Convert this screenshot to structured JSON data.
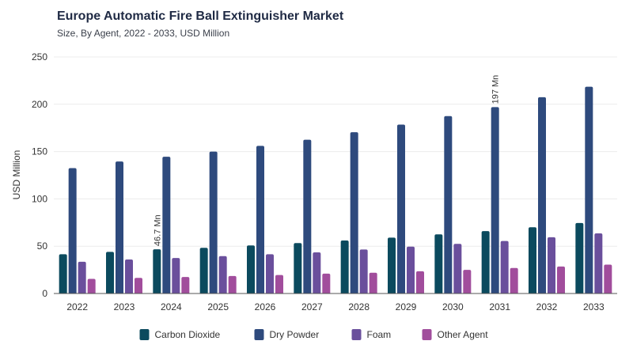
{
  "chart_data": {
    "type": "bar",
    "title": "Europe Automatic Fire Ball Extinguisher Market",
    "subtitle": "Size, By Agent, 2022 - 2033, USD Million",
    "xlabel": "",
    "ylabel": "USD Million",
    "ylim": [
      0,
      250
    ],
    "yticks": [
      0,
      50,
      100,
      150,
      200,
      250
    ],
    "grid": true,
    "legend_position": "bottom-center",
    "categories": [
      "2022",
      "2023",
      "2024",
      "2025",
      "2026",
      "2027",
      "2028",
      "2029",
      "2030",
      "2031",
      "2032",
      "2033"
    ],
    "series": [
      {
        "name": "Carbon Dioxide",
        "color": "#0b4a5e",
        "values": [
          41.5,
          44.0,
          46.7,
          48.3,
          50.8,
          53.3,
          56.0,
          59.0,
          62.5,
          66.0,
          70.0,
          74.5
        ]
      },
      {
        "name": "Dry Powder",
        "color": "#2e4a7d",
        "values": [
          132.5,
          139.5,
          144.5,
          150.0,
          156.0,
          162.5,
          170.5,
          178.5,
          187.5,
          197.0,
          207.5,
          218.5
        ]
      },
      {
        "name": "Foam",
        "color": "#6a4f9c",
        "values": [
          33.5,
          36.0,
          37.5,
          39.5,
          41.5,
          43.5,
          46.5,
          49.5,
          52.5,
          55.5,
          59.5,
          63.5
        ]
      },
      {
        "name": "Other Agent",
        "color": "#a14d9c",
        "values": [
          15.5,
          16.5,
          17.5,
          18.5,
          19.5,
          21.0,
          22.0,
          23.5,
          25.0,
          27.0,
          28.5,
          30.5
        ]
      }
    ],
    "annotations": [
      {
        "series": 0,
        "category": "2024",
        "text": "46.7 Mn"
      },
      {
        "series": 1,
        "category": "2031",
        "text": "197 Mn"
      }
    ]
  }
}
